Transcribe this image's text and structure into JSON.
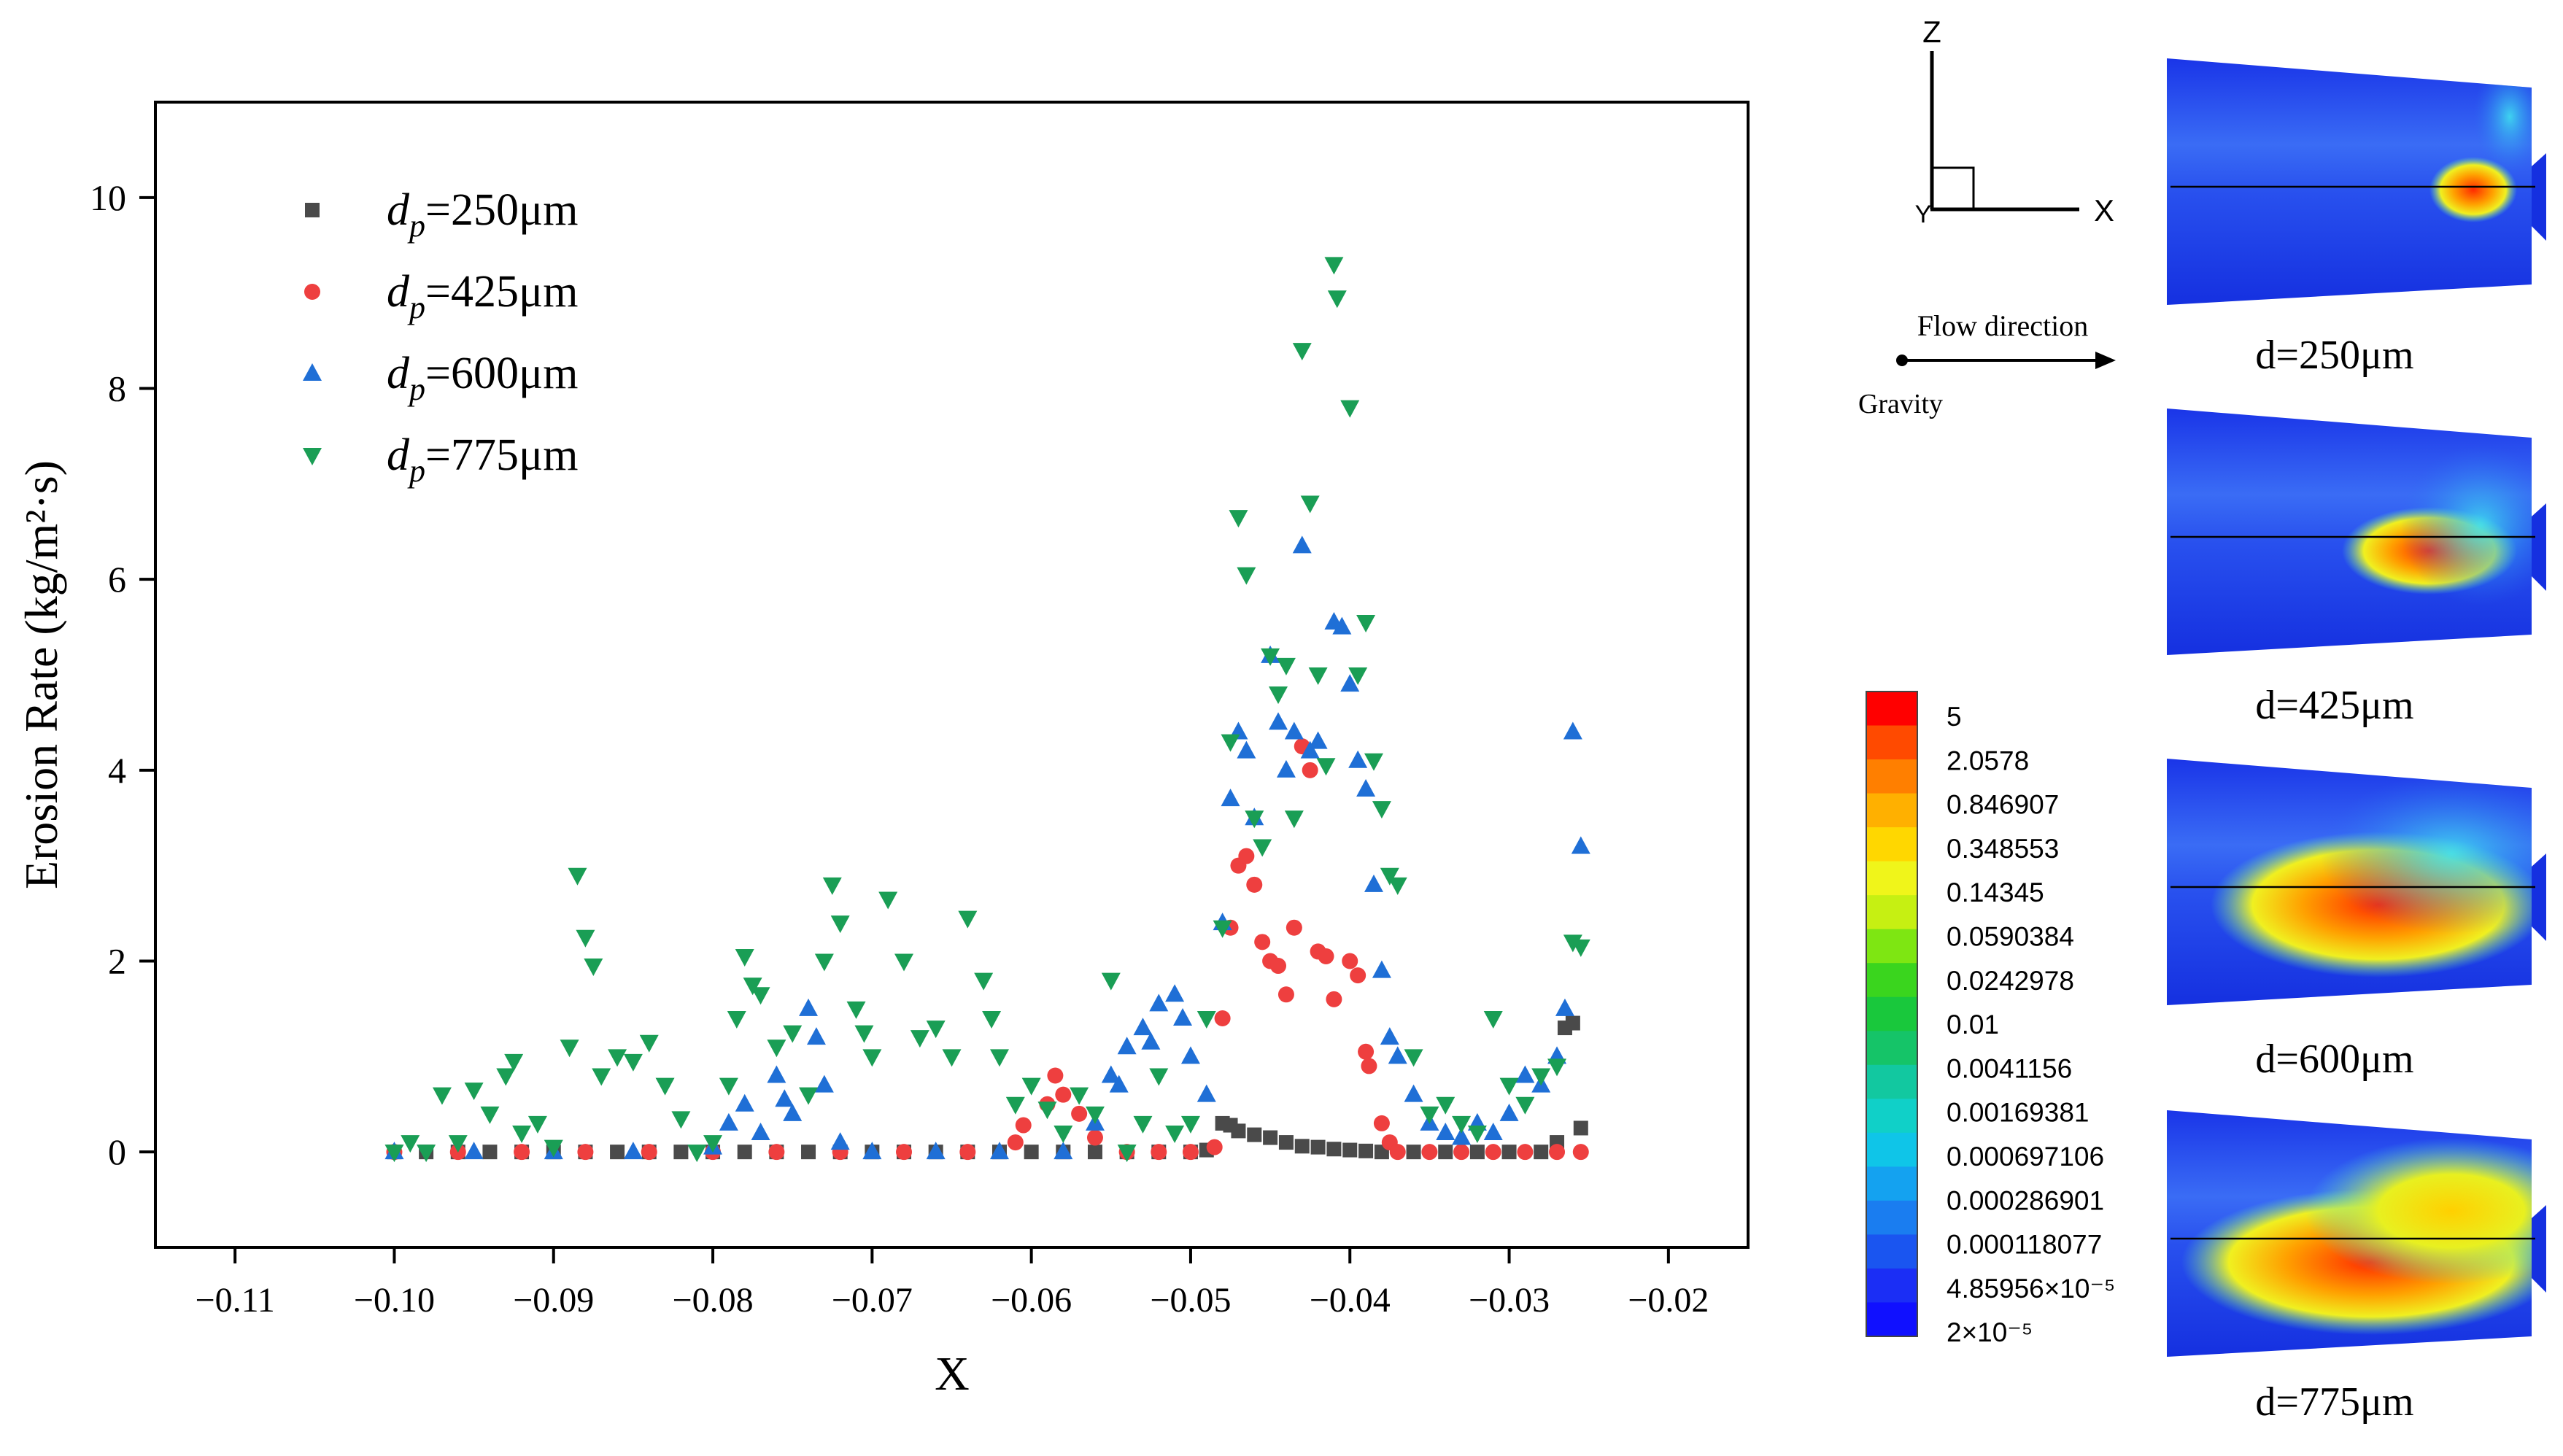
{
  "chart_data": {
    "type": "scatter",
    "xlabel": "X",
    "ylabel": "Erosion Rate (kg/m²·s)",
    "xlim": [
      -0.115,
      -0.015
    ],
    "ylim": [
      -1,
      11
    ],
    "xticks": [
      -0.11,
      -0.1,
      -0.09,
      -0.08,
      -0.07,
      -0.06,
      -0.05,
      -0.04,
      -0.03,
      -0.02
    ],
    "xtick_labels": [
      "−0.11",
      "−0.10",
      "−0.09",
      "−0.08",
      "−0.07",
      "−0.06",
      "−0.05",
      "−0.04",
      "−0.03",
      "−0.02"
    ],
    "yticks": [
      0,
      2,
      4,
      6,
      8,
      10
    ],
    "ytick_labels": [
      "0",
      "2",
      "4",
      "6",
      "8",
      "10"
    ],
    "legend_position": "top-left",
    "series": [
      {
        "name": "d_p=250μm",
        "symbol": "d",
        "subscript": "p",
        "value_text": "=250μm",
        "marker": "square",
        "color": "#4a4a4a",
        "points": [
          [
            -0.1,
            0.0
          ],
          [
            -0.098,
            0.0
          ],
          [
            -0.096,
            0.0
          ],
          [
            -0.094,
            0.0
          ],
          [
            -0.092,
            0.0
          ],
          [
            -0.09,
            0.0
          ],
          [
            -0.088,
            0.0
          ],
          [
            -0.086,
            0.0
          ],
          [
            -0.084,
            0.0
          ],
          [
            -0.082,
            0.0
          ],
          [
            -0.08,
            0.0
          ],
          [
            -0.078,
            0.0
          ],
          [
            -0.076,
            0.0
          ],
          [
            -0.074,
            0.0
          ],
          [
            -0.072,
            0.0
          ],
          [
            -0.07,
            0.0
          ],
          [
            -0.068,
            0.0
          ],
          [
            -0.066,
            0.0
          ],
          [
            -0.064,
            0.0
          ],
          [
            -0.062,
            0.0
          ],
          [
            -0.06,
            0.0
          ],
          [
            -0.058,
            0.0
          ],
          [
            -0.056,
            0.0
          ],
          [
            -0.054,
            0.0
          ],
          [
            -0.052,
            0.0
          ],
          [
            -0.05,
            0.0
          ],
          [
            -0.049,
            0.02
          ],
          [
            -0.048,
            0.3
          ],
          [
            -0.0475,
            0.28
          ],
          [
            -0.047,
            0.22
          ],
          [
            -0.046,
            0.18
          ],
          [
            -0.045,
            0.15
          ],
          [
            -0.044,
            0.1
          ],
          [
            -0.043,
            0.06
          ],
          [
            -0.042,
            0.05
          ],
          [
            -0.041,
            0.03
          ],
          [
            -0.04,
            0.02
          ],
          [
            -0.039,
            0.01
          ],
          [
            -0.038,
            0.0
          ],
          [
            -0.036,
            0.0
          ],
          [
            -0.034,
            0.0
          ],
          [
            -0.032,
            0.0
          ],
          [
            -0.03,
            0.0
          ],
          [
            -0.028,
            0.0
          ],
          [
            -0.027,
            0.1
          ],
          [
            -0.0265,
            1.3
          ],
          [
            -0.026,
            1.35
          ],
          [
            -0.0255,
            0.25
          ]
        ]
      },
      {
        "name": "d_p=425μm",
        "symbol": "d",
        "subscript": "p",
        "value_text": "=425μm",
        "marker": "circle",
        "color": "#ee3f3f",
        "points": [
          [
            -0.1,
            0.0
          ],
          [
            -0.096,
            0.0
          ],
          [
            -0.092,
            0.0
          ],
          [
            -0.088,
            0.0
          ],
          [
            -0.084,
            0.0
          ],
          [
            -0.08,
            0.0
          ],
          [
            -0.076,
            0.0
          ],
          [
            -0.072,
            0.0
          ],
          [
            -0.068,
            0.0
          ],
          [
            -0.064,
            0.0
          ],
          [
            -0.061,
            0.1
          ],
          [
            -0.0605,
            0.28
          ],
          [
            -0.059,
            0.5
          ],
          [
            -0.0585,
            0.8
          ],
          [
            -0.058,
            0.6
          ],
          [
            -0.057,
            0.4
          ],
          [
            -0.056,
            0.15
          ],
          [
            -0.054,
            0.0
          ],
          [
            -0.052,
            0.0
          ],
          [
            -0.05,
            0.0
          ],
          [
            -0.0485,
            0.05
          ],
          [
            -0.048,
            1.4
          ],
          [
            -0.0475,
            2.35
          ],
          [
            -0.047,
            3.0
          ],
          [
            -0.0465,
            3.1
          ],
          [
            -0.046,
            2.8
          ],
          [
            -0.0455,
            2.2
          ],
          [
            -0.045,
            2.0
          ],
          [
            -0.0445,
            1.95
          ],
          [
            -0.044,
            1.65
          ],
          [
            -0.0435,
            2.35
          ],
          [
            -0.043,
            4.25
          ],
          [
            -0.0425,
            4.0
          ],
          [
            -0.042,
            2.1
          ],
          [
            -0.0415,
            2.05
          ],
          [
            -0.041,
            1.6
          ],
          [
            -0.04,
            2.0
          ],
          [
            -0.0395,
            1.85
          ],
          [
            -0.039,
            1.05
          ],
          [
            -0.0388,
            0.9
          ],
          [
            -0.038,
            0.3
          ],
          [
            -0.0375,
            0.1
          ],
          [
            -0.037,
            0.0
          ],
          [
            -0.035,
            0.0
          ],
          [
            -0.033,
            0.0
          ],
          [
            -0.031,
            0.0
          ],
          [
            -0.029,
            0.0
          ],
          [
            -0.027,
            0.0
          ],
          [
            -0.0255,
            0.0
          ]
        ]
      },
      {
        "name": "d_p=600μm",
        "symbol": "d",
        "subscript": "p",
        "value_text": "=600μm",
        "marker": "triangle-up",
        "color": "#1f6fd6",
        "points": [
          [
            -0.1,
            0.0
          ],
          [
            -0.095,
            0.0
          ],
          [
            -0.09,
            0.0
          ],
          [
            -0.085,
            0.0
          ],
          [
            -0.08,
            0.05
          ],
          [
            -0.079,
            0.3
          ],
          [
            -0.078,
            0.5
          ],
          [
            -0.077,
            0.2
          ],
          [
            -0.076,
            0.8
          ],
          [
            -0.0755,
            0.55
          ],
          [
            -0.075,
            0.4
          ],
          [
            -0.074,
            1.5
          ],
          [
            -0.0735,
            1.2
          ],
          [
            -0.073,
            0.7
          ],
          [
            -0.072,
            0.1
          ],
          [
            -0.07,
            0.0
          ],
          [
            -0.066,
            0.0
          ],
          [
            -0.062,
            0.0
          ],
          [
            -0.058,
            0.0
          ],
          [
            -0.056,
            0.3
          ],
          [
            -0.055,
            0.8
          ],
          [
            -0.0545,
            0.7
          ],
          [
            -0.054,
            1.1
          ],
          [
            -0.053,
            1.3
          ],
          [
            -0.0525,
            1.15
          ],
          [
            -0.052,
            1.55
          ],
          [
            -0.051,
            1.65
          ],
          [
            -0.0505,
            1.4
          ],
          [
            -0.05,
            1.0
          ],
          [
            -0.049,
            0.6
          ],
          [
            -0.048,
            2.4
          ],
          [
            -0.0475,
            3.7
          ],
          [
            -0.047,
            4.4
          ],
          [
            -0.0465,
            4.2
          ],
          [
            -0.046,
            3.5
          ],
          [
            -0.045,
            5.2
          ],
          [
            -0.0445,
            4.5
          ],
          [
            -0.044,
            4.0
          ],
          [
            -0.0435,
            4.4
          ],
          [
            -0.043,
            6.35
          ],
          [
            -0.0425,
            4.2
          ],
          [
            -0.042,
            4.3
          ],
          [
            -0.041,
            5.55
          ],
          [
            -0.0405,
            5.5
          ],
          [
            -0.04,
            4.9
          ],
          [
            -0.0395,
            4.1
          ],
          [
            -0.039,
            3.8
          ],
          [
            -0.0385,
            2.8
          ],
          [
            -0.038,
            1.9
          ],
          [
            -0.0375,
            1.2
          ],
          [
            -0.037,
            1.0
          ],
          [
            -0.036,
            0.6
          ],
          [
            -0.035,
            0.3
          ],
          [
            -0.034,
            0.2
          ],
          [
            -0.033,
            0.15
          ],
          [
            -0.032,
            0.3
          ],
          [
            -0.031,
            0.2
          ],
          [
            -0.03,
            0.4
          ],
          [
            -0.029,
            0.8
          ],
          [
            -0.028,
            0.7
          ],
          [
            -0.027,
            1.0
          ],
          [
            -0.0265,
            1.5
          ],
          [
            -0.026,
            4.4
          ],
          [
            -0.0255,
            3.2
          ]
        ]
      },
      {
        "name": "d_p=775μm",
        "symbol": "d",
        "subscript": "p",
        "value_text": "=775μm",
        "marker": "triangle-down",
        "color": "#1a9e55",
        "points": [
          [
            -0.1,
            0.0
          ],
          [
            -0.099,
            0.1
          ],
          [
            -0.098,
            0.0
          ],
          [
            -0.097,
            0.6
          ],
          [
            -0.096,
            0.1
          ],
          [
            -0.095,
            0.65
          ],
          [
            -0.094,
            0.4
          ],
          [
            -0.093,
            0.8
          ],
          [
            -0.0925,
            0.95
          ],
          [
            -0.092,
            0.2
          ],
          [
            -0.091,
            0.3
          ],
          [
            -0.09,
            0.05
          ],
          [
            -0.089,
            1.1
          ],
          [
            -0.0885,
            2.9
          ],
          [
            -0.088,
            2.25
          ],
          [
            -0.0875,
            1.95
          ],
          [
            -0.087,
            0.8
          ],
          [
            -0.086,
            1.0
          ],
          [
            -0.085,
            0.95
          ],
          [
            -0.084,
            1.15
          ],
          [
            -0.083,
            0.7
          ],
          [
            -0.082,
            0.35
          ],
          [
            -0.081,
            0.0
          ],
          [
            -0.08,
            0.1
          ],
          [
            -0.079,
            0.7
          ],
          [
            -0.0785,
            1.4
          ],
          [
            -0.078,
            2.05
          ],
          [
            -0.0775,
            1.75
          ],
          [
            -0.077,
            1.65
          ],
          [
            -0.076,
            1.1
          ],
          [
            -0.075,
            1.25
          ],
          [
            -0.074,
            0.6
          ],
          [
            -0.073,
            2.0
          ],
          [
            -0.0725,
            2.8
          ],
          [
            -0.072,
            2.4
          ],
          [
            -0.071,
            1.5
          ],
          [
            -0.0705,
            1.25
          ],
          [
            -0.07,
            1.0
          ],
          [
            -0.069,
            2.65
          ],
          [
            -0.068,
            2.0
          ],
          [
            -0.067,
            1.2
          ],
          [
            -0.066,
            1.3
          ],
          [
            -0.065,
            1.0
          ],
          [
            -0.064,
            2.45
          ],
          [
            -0.063,
            1.8
          ],
          [
            -0.0625,
            1.4
          ],
          [
            -0.062,
            1.0
          ],
          [
            -0.061,
            0.5
          ],
          [
            -0.06,
            0.7
          ],
          [
            -0.059,
            0.45
          ],
          [
            -0.058,
            0.2
          ],
          [
            -0.057,
            0.6
          ],
          [
            -0.056,
            0.4
          ],
          [
            -0.055,
            1.8
          ],
          [
            -0.054,
            0.0
          ],
          [
            -0.053,
            0.3
          ],
          [
            -0.052,
            0.8
          ],
          [
            -0.051,
            0.2
          ],
          [
            -0.05,
            0.3
          ],
          [
            -0.049,
            1.4
          ],
          [
            -0.048,
            2.35
          ],
          [
            -0.0475,
            4.3
          ],
          [
            -0.047,
            6.65
          ],
          [
            -0.0465,
            6.05
          ],
          [
            -0.046,
            3.5
          ],
          [
            -0.0455,
            3.2
          ],
          [
            -0.045,
            5.2
          ],
          [
            -0.0445,
            4.8
          ],
          [
            -0.044,
            5.1
          ],
          [
            -0.0435,
            3.5
          ],
          [
            -0.043,
            8.4
          ],
          [
            -0.0425,
            6.8
          ],
          [
            -0.042,
            5.0
          ],
          [
            -0.0415,
            4.05
          ],
          [
            -0.041,
            9.3
          ],
          [
            -0.0408,
            8.95
          ],
          [
            -0.04,
            7.8
          ],
          [
            -0.0395,
            5.0
          ],
          [
            -0.039,
            5.55
          ],
          [
            -0.0385,
            4.1
          ],
          [
            -0.038,
            3.6
          ],
          [
            -0.0375,
            2.9
          ],
          [
            -0.037,
            2.8
          ],
          [
            -0.036,
            1.0
          ],
          [
            -0.035,
            0.4
          ],
          [
            -0.034,
            0.5
          ],
          [
            -0.033,
            0.3
          ],
          [
            -0.032,
            0.2
          ],
          [
            -0.031,
            1.4
          ],
          [
            -0.03,
            0.7
          ],
          [
            -0.029,
            0.5
          ],
          [
            -0.028,
            0.8
          ],
          [
            -0.027,
            0.9
          ],
          [
            -0.026,
            2.2
          ],
          [
            -0.0255,
            2.15
          ]
        ]
      }
    ]
  },
  "axes_diagram": {
    "z_label": "Z",
    "x_label": "X",
    "y_label": "Y",
    "flow_label": "Flow direction",
    "gravity_label": "Gravity"
  },
  "colorbar": {
    "colors": [
      "#ff0000",
      "#ff4a00",
      "#ff7f00",
      "#ffb000",
      "#ffd700",
      "#f0f51a",
      "#c6f012",
      "#7ee612",
      "#3ad51e",
      "#19c83c",
      "#15c468",
      "#12c8a0",
      "#10d0c8",
      "#0fc5e8",
      "#14a2f0",
      "#1a7df0",
      "#1a55f0",
      "#1b2ef5",
      "#1010ff"
    ],
    "labels": [
      "5",
      "2.0578",
      "0.846907",
      "0.348553",
      "0.14345",
      "0.0590384",
      "0.0242978",
      "0.01",
      "0.0041156",
      "0.00169381",
      "0.000697106",
      "0.000286901",
      "0.000118077",
      "4.85956×10⁻⁵",
      "2×10⁻⁵"
    ]
  },
  "contour_panels": [
    {
      "label": "d=250μm"
    },
    {
      "label": "d=425μm"
    },
    {
      "label": "d=600μm"
    },
    {
      "label": "d=775μm"
    }
  ]
}
